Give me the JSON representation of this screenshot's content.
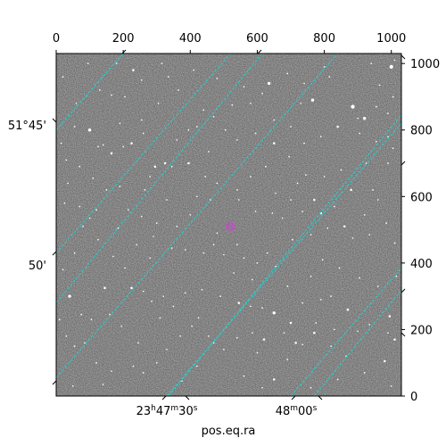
{
  "chart_data": {
    "type": "scatter",
    "title": "",
    "xlabel": "pos.eq.ra",
    "ylabel": "",
    "xlim": [
      0,
      1030
    ],
    "ylim": [
      0,
      1030
    ],
    "pixel_axis_x": {
      "ticks": [
        0,
        200,
        400,
        600,
        800,
        1000
      ],
      "labels": [
        "0",
        "200",
        "400",
        "600",
        "800",
        "1000"
      ],
      "position": "top"
    },
    "pixel_axis_y": {
      "ticks": [
        0,
        200,
        400,
        600,
        800,
        1000
      ],
      "labels": [
        "0",
        "200",
        "400",
        "600",
        "800",
        "1000"
      ],
      "position": "right"
    },
    "ra_ticks": [
      {
        "label": "23h47m30s",
        "parts": [
          "23",
          "h",
          "47",
          "m",
          "30",
          "s"
        ]
      },
      {
        "label": "48m00s",
        "parts": [
          "48",
          "m",
          "00",
          "s"
        ]
      }
    ],
    "dec_ticks": [
      {
        "label": "51°45'"
      },
      {
        "label": "50'"
      }
    ],
    "grid_color": "#1fd3d3",
    "marker_color": "#d63be0",
    "image_background": "grayscale star field",
    "grid_lines": [
      {
        "family": "ra",
        "start": [
          0,
          800
        ],
        "end": [
          200,
          1030
        ]
      },
      {
        "family": "ra",
        "start": [
          0,
          430
        ],
        "end": [
          520,
          1030
        ]
      },
      {
        "family": "ra",
        "start": [
          0,
          55
        ],
        "end": [
          840,
          1030
        ]
      },
      {
        "family": "ra",
        "start": [
          330,
          0
        ],
        "end": [
          1030,
          820
        ]
      },
      {
        "family": "ra",
        "start": [
          700,
          0
        ],
        "end": [
          1030,
          385
        ]
      },
      {
        "family": "dec",
        "start": [
          0,
          800
        ],
        "end": [
          200,
          1030
        ]
      },
      {
        "family": "dec",
        "start": [
          0,
          280
        ],
        "end": [
          615,
          1030
        ]
      },
      {
        "family": "dec",
        "start": [
          335,
          0
        ],
        "end": [
          1030,
          845
        ]
      },
      {
        "family": "dec",
        "start": [
          770,
          0
        ],
        "end": [
          1030,
          318
        ]
      }
    ],
    "marked_source": {
      "x": 520,
      "y": 510
    },
    "stars": [
      [
        100,
        800,
        2
      ],
      [
        125,
        750,
        1
      ],
      [
        140,
        755,
        1
      ],
      [
        165,
        730,
        1.5
      ],
      [
        200,
        750,
        1
      ],
      [
        225,
        760,
        1.5
      ],
      [
        130,
        920,
        1
      ],
      [
        165,
        905,
        1
      ],
      [
        205,
        900,
        1
      ],
      [
        255,
        830,
        1
      ],
      [
        305,
        880,
        1
      ],
      [
        315,
        1000,
        1
      ],
      [
        230,
        980,
        1.5
      ],
      [
        180,
        1000,
        1
      ],
      [
        365,
        920,
        1
      ],
      [
        395,
        800,
        1
      ],
      [
        420,
        810,
        1
      ],
      [
        505,
        800,
        1
      ],
      [
        525,
        875,
        1
      ],
      [
        440,
        860,
        1
      ],
      [
        470,
        840,
        1
      ],
      [
        635,
        940,
        2
      ],
      [
        615,
        910,
        1
      ],
      [
        580,
        880,
        1
      ],
      [
        650,
        830,
        1
      ],
      [
        700,
        810,
        1
      ],
      [
        765,
        890,
        2
      ],
      [
        815,
        960,
        1
      ],
      [
        885,
        870,
        2.5
      ],
      [
        920,
        835,
        2
      ],
      [
        940,
        1000,
        1
      ],
      [
        1000,
        990,
        2.5
      ],
      [
        1010,
        1010,
        1
      ],
      [
        840,
        810,
        1.5
      ],
      [
        900,
        835,
        1
      ],
      [
        955,
        870,
        1
      ],
      [
        990,
        850,
        1
      ],
      [
        1005,
        745,
        1
      ],
      [
        990,
        700,
        1
      ],
      [
        925,
        700,
        1
      ],
      [
        880,
        620,
        1.5
      ],
      [
        770,
        590,
        1.5
      ],
      [
        800,
        660,
        1
      ],
      [
        720,
        640,
        1
      ],
      [
        695,
        720,
        1
      ],
      [
        650,
        760,
        1.5
      ],
      [
        625,
        690,
        1
      ],
      [
        580,
        660,
        1
      ],
      [
        540,
        620,
        1
      ],
      [
        480,
        640,
        1
      ],
      [
        445,
        660,
        1
      ],
      [
        395,
        700,
        1.5
      ],
      [
        345,
        690,
        1
      ],
      [
        325,
        700,
        1.5
      ],
      [
        295,
        690,
        1.5
      ],
      [
        280,
        660,
        1
      ],
      [
        265,
        620,
        1
      ],
      [
        190,
        630,
        1
      ],
      [
        150,
        620,
        1
      ],
      [
        120,
        560,
        1
      ],
      [
        70,
        570,
        1
      ],
      [
        35,
        640,
        1
      ],
      [
        25,
        580,
        1
      ],
      [
        255,
        540,
        1
      ],
      [
        300,
        520,
        1
      ],
      [
        360,
        510,
        1
      ],
      [
        400,
        545,
        1
      ],
      [
        545,
        590,
        1
      ],
      [
        595,
        555,
        1
      ],
      [
        645,
        550,
        1
      ],
      [
        675,
        535,
        1
      ],
      [
        700,
        590,
        1
      ],
      [
        735,
        555,
        1
      ],
      [
        790,
        550,
        1.5
      ],
      [
        830,
        570,
        1
      ],
      [
        860,
        510,
        1.5
      ],
      [
        885,
        475,
        1
      ],
      [
        935,
        485,
        1
      ],
      [
        985,
        520,
        1
      ],
      [
        1010,
        460,
        1
      ],
      [
        705,
        470,
        1
      ],
      [
        630,
        430,
        1
      ],
      [
        600,
        400,
        1
      ],
      [
        560,
        415,
        1
      ],
      [
        480,
        490,
        1
      ],
      [
        470,
        455,
        1
      ],
      [
        440,
        430,
        1
      ],
      [
        385,
        440,
        1
      ],
      [
        345,
        445,
        1
      ],
      [
        280,
        415,
        1
      ],
      [
        205,
        385,
        1
      ],
      [
        170,
        420,
        1
      ],
      [
        125,
        470,
        1
      ],
      [
        55,
        430,
        1
      ],
      [
        20,
        380,
        1
      ],
      [
        40,
        300,
        2
      ],
      [
        145,
        325,
        1.5
      ],
      [
        225,
        325,
        1.5
      ],
      [
        260,
        315,
        1
      ],
      [
        285,
        285,
        1
      ],
      [
        320,
        300,
        1
      ],
      [
        350,
        270,
        1
      ],
      [
        385,
        310,
        1
      ],
      [
        435,
        320,
        1
      ],
      [
        490,
        300,
        1
      ],
      [
        545,
        280,
        1.5
      ],
      [
        580,
        270,
        1
      ],
      [
        615,
        265,
        1
      ],
      [
        650,
        250,
        2
      ],
      [
        700,
        220,
        1.5
      ],
      [
        735,
        280,
        1
      ],
      [
        775,
        220,
        1
      ],
      [
        790,
        290,
        1
      ],
      [
        820,
        300,
        1
      ],
      [
        870,
        260,
        1.5
      ],
      [
        935,
        215,
        1
      ],
      [
        995,
        240,
        1.5
      ],
      [
        1010,
        170,
        1.5
      ],
      [
        980,
        105,
        1.5
      ],
      [
        1000,
        30,
        1
      ],
      [
        920,
        70,
        1
      ],
      [
        865,
        120,
        1
      ],
      [
        820,
        150,
        1
      ],
      [
        770,
        190,
        1.5
      ],
      [
        735,
        155,
        1
      ],
      [
        690,
        110,
        1
      ],
      [
        650,
        50,
        1.5
      ],
      [
        615,
        25,
        1
      ],
      [
        560,
        60,
        1
      ],
      [
        500,
        140,
        1
      ],
      [
        455,
        180,
        1
      ],
      [
        405,
        210,
        1
      ],
      [
        370,
        180,
        1
      ],
      [
        330,
        140,
        1
      ],
      [
        300,
        100,
        1
      ],
      [
        260,
        70,
        1
      ],
      [
        230,
        90,
        1
      ],
      [
        165,
        75,
        1
      ],
      [
        120,
        100,
        1
      ],
      [
        85,
        160,
        1
      ],
      [
        55,
        150,
        1
      ],
      [
        30,
        180,
        1
      ],
      [
        10,
        230,
        1
      ],
      [
        75,
        245,
        1
      ],
      [
        105,
        230,
        1
      ],
      [
        160,
        245,
        1
      ],
      [
        195,
        210,
        1
      ],
      [
        310,
        235,
        1
      ],
      [
        425,
        235,
        1
      ],
      [
        470,
        160,
        1
      ],
      [
        540,
        175,
        1
      ],
      [
        600,
        130,
        1
      ],
      [
        620,
        170,
        1.5
      ],
      [
        680,
        190,
        1
      ],
      [
        715,
        160,
        1.5
      ],
      [
        830,
        200,
        1
      ],
      [
        900,
        195,
        1
      ],
      [
        990,
        190,
        1
      ],
      [
        840,
        50,
        1
      ],
      [
        760,
        25,
        1
      ],
      [
        585,
        190,
        1
      ],
      [
        245,
        160,
        1
      ],
      [
        140,
        35,
        1
      ],
      [
        50,
        30,
        1
      ],
      [
        375,
        45,
        1
      ],
      [
        420,
        90,
        1
      ],
      [
        1015,
        360,
        1
      ],
      [
        960,
        330,
        1
      ],
      [
        905,
        355,
        1
      ],
      [
        845,
        385,
        1
      ],
      [
        795,
        410,
        1
      ],
      [
        760,
        360,
        1
      ],
      [
        690,
        330,
        1
      ],
      [
        655,
        390,
        1
      ],
      [
        585,
        350,
        1
      ],
      [
        530,
        370,
        1
      ],
      [
        100,
        535,
        1
      ],
      [
        215,
        560,
        1
      ],
      [
        330,
        590,
        1
      ],
      [
        420,
        600,
        1
      ],
      [
        460,
        590,
        1
      ],
      [
        655,
        610,
        1
      ],
      [
        745,
        665,
        1
      ],
      [
        850,
        680,
        1
      ],
      [
        960,
        590,
        1
      ],
      [
        70,
        690,
        1
      ],
      [
        110,
        655,
        1
      ],
      [
        15,
        760,
        1
      ],
      [
        55,
        810,
        1
      ],
      [
        60,
        880,
        1
      ],
      [
        20,
        960,
        1
      ],
      [
        95,
        1000,
        1
      ],
      [
        255,
        950,
        1
      ],
      [
        335,
        960,
        1
      ],
      [
        410,
        980,
        1
      ],
      [
        480,
        955,
        1
      ],
      [
        560,
        930,
        1
      ],
      [
        690,
        970,
        1
      ],
      [
        740,
        940,
        1
      ],
      [
        800,
        990,
        1
      ],
      [
        965,
        935,
        1
      ],
      [
        1005,
        900,
        1
      ],
      [
        730,
        880,
        1
      ],
      [
        595,
        790,
        1
      ],
      [
        540,
        770,
        1
      ],
      [
        455,
        735,
        1
      ],
      [
        360,
        770,
        1
      ],
      [
        260,
        790,
        1
      ],
      [
        190,
        820,
        1
      ],
      [
        30,
        710,
        1
      ],
      [
        990,
        780,
        1
      ],
      [
        955,
        765,
        1
      ],
      [
        905,
        790,
        1
      ],
      [
        790,
        780,
        1
      ],
      [
        740,
        760,
        1
      ],
      [
        945,
        620,
        1
      ],
      [
        920,
        545,
        1
      ],
      [
        810,
        505,
        1
      ],
      [
        760,
        485,
        1
      ],
      [
        540,
        455,
        1
      ],
      [
        500,
        425,
        1
      ],
      [
        290,
        480,
        1
      ],
      [
        240,
        455,
        1
      ],
      [
        185,
        505,
        1
      ],
      [
        80,
        510,
        1
      ]
    ]
  }
}
